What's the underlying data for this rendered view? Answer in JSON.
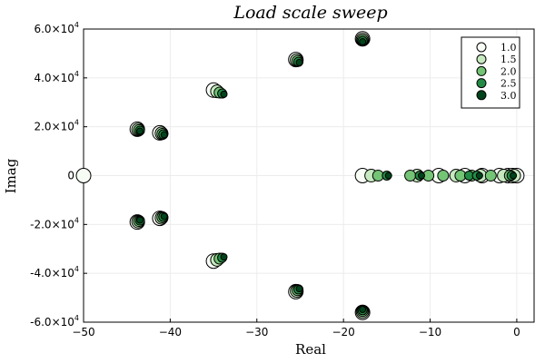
{
  "chart_data": {
    "type": "scatter",
    "title": "Load scale sweep",
    "xlabel": "Real",
    "ylabel": "Imag",
    "xlim": [
      -50,
      2
    ],
    "ylim": [
      -60000,
      60000
    ],
    "x_ticks": [
      -50,
      -40,
      -30,
      -20,
      -10,
      0
    ],
    "y_ticks": [
      -60000,
      -40000,
      -20000,
      0,
      20000,
      40000,
      60000
    ],
    "y_tick_labels": [
      {
        "mantissa": "-6.0×10",
        "exp": "4"
      },
      {
        "mantissa": "-4.0×10",
        "exp": "4"
      },
      {
        "mantissa": "-2.0×10",
        "exp": "4"
      },
      {
        "mantissa": "0",
        "exp": ""
      },
      {
        "mantissa": "2.0×10",
        "exp": "4"
      },
      {
        "mantissa": "4.0×10",
        "exp": "4"
      },
      {
        "mantissa": "6.0×10",
        "exp": "4"
      }
    ],
    "grid": true,
    "legend_position": "top-right",
    "series": [
      {
        "name": "1.0",
        "color": "#f7fcf5",
        "size": 8,
        "points": [
          [
            -50,
            0
          ],
          [
            -43.8,
            19000
          ],
          [
            -43.8,
            -19000
          ],
          [
            -41.2,
            17500
          ],
          [
            -41.2,
            -17500
          ],
          [
            -35,
            35000
          ],
          [
            -35,
            -35000
          ],
          [
            -25.5,
            47500
          ],
          [
            -25.5,
            -47500
          ],
          [
            -17.8,
            56000
          ],
          [
            -17.8,
            -56000
          ],
          [
            -17.8,
            0
          ],
          [
            -9,
            0
          ],
          [
            -6,
            0
          ],
          [
            -4,
            0
          ],
          [
            -2,
            0
          ],
          [
            -1,
            0
          ],
          [
            -0.5,
            0
          ],
          [
            0,
            0
          ]
        ]
      },
      {
        "name": "1.5",
        "color": "#c7e9c0",
        "size": 7,
        "points": [
          [
            -43.7,
            18800
          ],
          [
            -43.7,
            -18800
          ],
          [
            -41,
            17300
          ],
          [
            -41,
            -17300
          ],
          [
            -34.6,
            34500
          ],
          [
            -34.6,
            -34500
          ],
          [
            -25.4,
            47200
          ],
          [
            -25.4,
            -47200
          ],
          [
            -17.8,
            55700
          ],
          [
            -17.8,
            -55700
          ],
          [
            -16.8,
            0
          ],
          [
            -11.5,
            0
          ],
          [
            -7,
            0
          ],
          [
            -4.2,
            0
          ],
          [
            -1.5,
            0
          ],
          [
            -0.3,
            0
          ]
        ]
      },
      {
        "name": "2.0",
        "color": "#74c476",
        "size": 6,
        "points": [
          [
            -43.6,
            18600
          ],
          [
            -43.6,
            -18600
          ],
          [
            -40.9,
            17100
          ],
          [
            -40.9,
            -17100
          ],
          [
            -34.3,
            34000
          ],
          [
            -34.3,
            -34000
          ],
          [
            -25.3,
            46900
          ],
          [
            -25.3,
            -46900
          ],
          [
            -17.8,
            55400
          ],
          [
            -17.8,
            -55400
          ],
          [
            -16,
            0
          ],
          [
            -12.3,
            0
          ],
          [
            -10.2,
            0
          ],
          [
            -8.5,
            0
          ],
          [
            -6.5,
            0
          ],
          [
            -5.2,
            0
          ],
          [
            -3,
            0
          ],
          [
            -0.8,
            0
          ]
        ]
      },
      {
        "name": "2.5",
        "color": "#238b45",
        "size": 5,
        "points": [
          [
            -43.5,
            18400
          ],
          [
            -43.5,
            -18400
          ],
          [
            -40.8,
            16900
          ],
          [
            -40.8,
            -16900
          ],
          [
            -34,
            33600
          ],
          [
            -34,
            -33600
          ],
          [
            -25.2,
            46600
          ],
          [
            -25.2,
            -46600
          ],
          [
            -17.8,
            55100
          ],
          [
            -17.8,
            -55100
          ],
          [
            -15,
            0
          ],
          [
            -11.2,
            0
          ],
          [
            -5.5,
            0
          ],
          [
            -4.6,
            0
          ],
          [
            -0.6,
            0
          ]
        ]
      },
      {
        "name": "3.0",
        "color": "#00441b",
        "size": 3.5,
        "points": [
          [
            -43.5,
            18200
          ],
          [
            -43.5,
            -18200
          ],
          [
            -40.7,
            16700
          ],
          [
            -40.7,
            -16700
          ],
          [
            -33.8,
            33300
          ],
          [
            -33.8,
            -33300
          ],
          [
            -25.1,
            46300
          ],
          [
            -25.1,
            -46300
          ],
          [
            -17.8,
            54800
          ],
          [
            -17.8,
            -54800
          ],
          [
            -14.8,
            0
          ],
          [
            -11,
            0
          ],
          [
            -4.3,
            0
          ],
          [
            -0.4,
            0
          ]
        ]
      }
    ]
  }
}
